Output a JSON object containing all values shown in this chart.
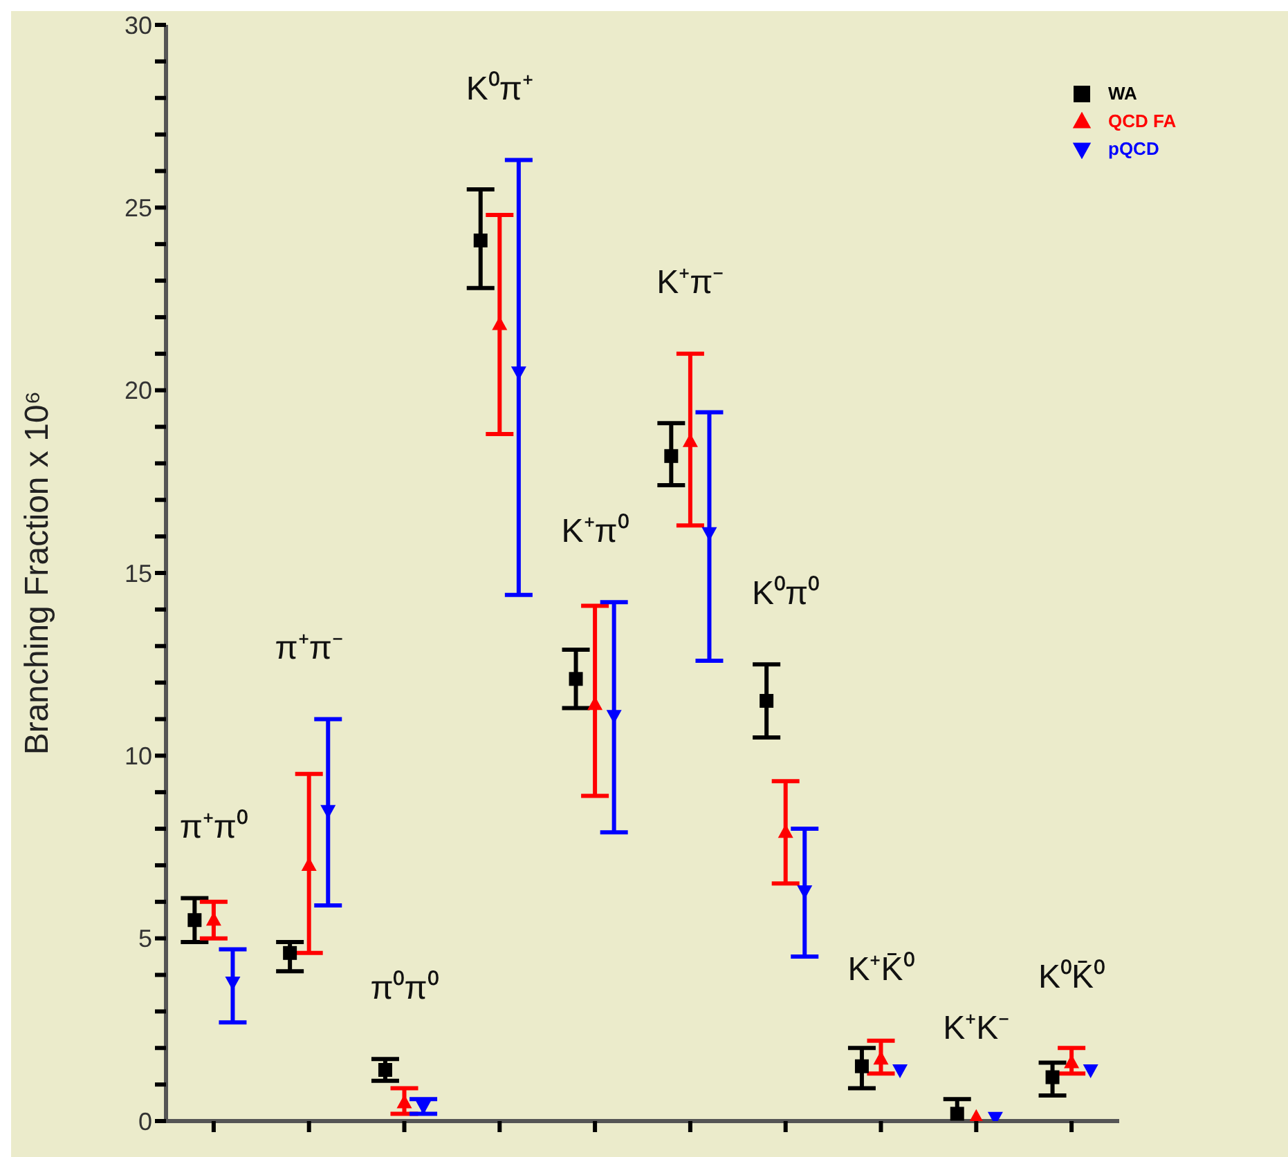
{
  "chart_data": {
    "type": "scatter",
    "ylabel": "Branching Fraction x 10⁶",
    "categories": [
      null,
      null,
      null,
      null,
      null,
      null,
      null,
      null,
      null,
      null
    ],
    "ylim": [
      0,
      30
    ],
    "yticks": [
      0,
      {
        "value": 1,
        "label": null
      },
      {
        "value": 2,
        "label": null
      },
      {
        "value": 3,
        "label": null
      },
      {
        "value": 4,
        "label": null
      },
      5,
      {
        "value": 6,
        "label": null
      },
      {
        "value": 7,
        "label": null
      },
      {
        "value": 8,
        "label": null
      },
      {
        "value": 9,
        "label": null
      },
      10,
      {
        "value": 11,
        "label": null
      },
      {
        "value": 12,
        "label": null
      },
      {
        "value": 13,
        "label": null
      },
      {
        "value": 14,
        "label": null
      },
      15,
      {
        "value": 16,
        "label": null
      },
      {
        "value": 17,
        "label": null
      },
      {
        "value": 18,
        "label": null
      },
      {
        "value": 19,
        "label": null
      },
      20,
      {
        "value": 21,
        "label": null
      },
      {
        "value": 22,
        "label": null
      },
      {
        "value": 23,
        "label": null
      },
      {
        "value": 24,
        "label": null
      },
      25,
      {
        "value": 26,
        "label": null
      },
      {
        "value": 27,
        "label": null
      },
      {
        "value": 28,
        "label": null
      },
      {
        "value": 29,
        "label": null
      },
      30
    ],
    "tick_labels": "y",
    "legend": "top right",
    "series": [
      {
        "name": "WA",
        "color": "#000000",
        "marker": "square",
        "values": [
          5.5,
          4.6,
          1.4,
          24.1,
          12.1,
          18.2,
          11.5,
          1.5,
          0.2,
          1.2
        ],
        "errors": [
          [
            4.9,
            6.1
          ],
          [
            4.1,
            4.9
          ],
          [
            1.1,
            1.7
          ],
          [
            22.8,
            25.5
          ],
          [
            11.3,
            12.9
          ],
          [
            17.4,
            19.1
          ],
          [
            10.5,
            12.5
          ],
          [
            0.9,
            2.0
          ],
          [
            0.0,
            0.6
          ],
          [
            0.7,
            1.6
          ]
        ]
      },
      {
        "name": "QCD FA",
        "color": "#ff0000",
        "marker": "triangle",
        "values": [
          5.5,
          7.0,
          0.5,
          21.8,
          11.4,
          18.6,
          7.9,
          1.7,
          0.1,
          1.6
        ],
        "errors": [
          [
            5.0,
            6.0
          ],
          [
            4.6,
            9.5
          ],
          [
            0.2,
            0.9
          ],
          [
            18.8,
            24.8
          ],
          [
            8.9,
            14.1
          ],
          [
            16.3,
            21.0
          ],
          [
            6.5,
            9.3
          ],
          [
            1.3,
            2.2
          ],
          null,
          [
            1.3,
            2.0
          ]
        ]
      },
      {
        "name": "pQCD",
        "color": "#0000ff",
        "marker": "triangle-down",
        "values": [
          3.8,
          8.5,
          0.4,
          20.5,
          11.1,
          16.1,
          6.3,
          1.4,
          0.1,
          1.4
        ],
        "errors": [
          [
            2.7,
            4.7
          ],
          [
            5.9,
            11.0
          ],
          [
            0.2,
            0.6
          ],
          [
            14.4,
            26.3
          ],
          [
            7.9,
            14.2
          ],
          [
            12.6,
            19.4
          ],
          [
            4.5,
            8.0
          ],
          null,
          null,
          null
        ]
      }
    ],
    "annotations": [
      "π⁺π⁰",
      "π⁺π⁻",
      "π⁰π⁰",
      "K⁰π⁺",
      "K⁺π⁰",
      "K⁺π⁻",
      "K⁰π⁰",
      "K⁺K̄⁰",
      "K⁺K⁻",
      "K⁰K̄⁰"
    ]
  }
}
